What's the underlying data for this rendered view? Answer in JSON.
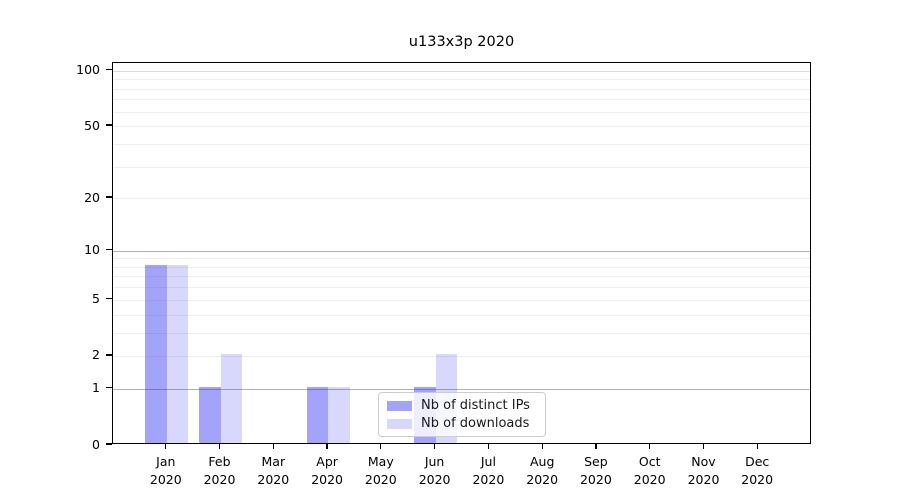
{
  "chart_data": {
    "type": "bar",
    "title": "u133x3p 2020",
    "categories": [
      "Jan",
      "Feb",
      "Mar",
      "Apr",
      "May",
      "Jun",
      "Jul",
      "Aug",
      "Sep",
      "Oct",
      "Nov",
      "Dec"
    ],
    "category_year": "2020",
    "series": [
      {
        "name": "Nb of distinct IPs",
        "color": "rgba(25,25,240,0.40)",
        "values": [
          8,
          1,
          0,
          1,
          0,
          1,
          0,
          0,
          0,
          0,
          0,
          0
        ]
      },
      {
        "name": "Nb of downloads",
        "color": "rgba(25,25,240,0.17)",
        "values": [
          8,
          2,
          0,
          1,
          0,
          2,
          0,
          0,
          0,
          0,
          0,
          0
        ]
      }
    ],
    "yscale": "log1p",
    "ylim": [
      0,
      110
    ],
    "yticks": [
      0,
      1,
      2,
      5,
      10,
      20,
      50,
      100
    ],
    "grid": {
      "dark_lines": [
        1,
        10
      ],
      "medium_lines": [
        100
      ],
      "minor_lines": [
        2,
        3,
        4,
        5,
        6,
        7,
        8,
        9,
        20,
        30,
        40,
        50,
        60,
        70,
        80,
        90
      ],
      "dark_color": "#b3b3b3",
      "medium_color": "#dcdcdc",
      "minor_color": "#eeeeee"
    },
    "legend_position": "lower center-right",
    "bar_width_fraction": 0.4
  }
}
